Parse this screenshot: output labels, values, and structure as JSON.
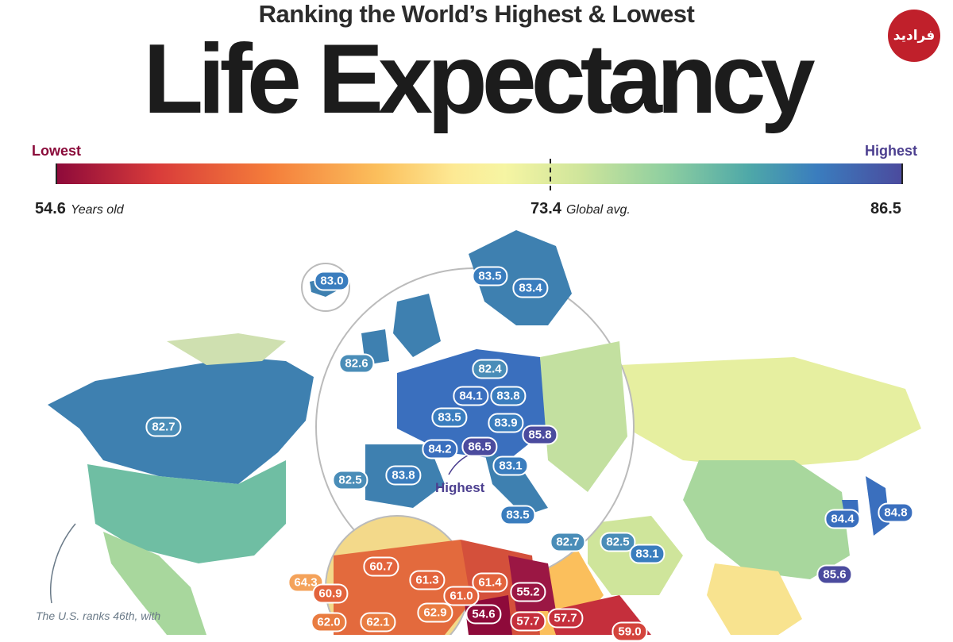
{
  "header": {
    "subtitle": "Ranking the World’s Highest & Lowest",
    "title": "Life Expectancy",
    "logo_text": "فرادید"
  },
  "legend": {
    "lowest_label": "Lowest",
    "highest_label": "Highest",
    "min_value": "54.6",
    "min_unit": "Years old",
    "avg_value": "73.4",
    "avg_unit": "Global avg.",
    "max_value": "86.5"
  },
  "annotations": {
    "highest_note": "Highest",
    "us_note": "The U.S. ranks 46th, with"
  },
  "colors": {
    "low": "#8e0a3a",
    "mid": "#f6f5a3",
    "high": "#4b4b9e"
  },
  "labels": [
    {
      "id": "iceland",
      "value": "83.0",
      "color": "#3a7dbe"
    },
    {
      "id": "norway",
      "value": "83.5",
      "color": "#3a7dbe"
    },
    {
      "id": "sweden",
      "value": "83.4",
      "color": "#3a7dbe"
    },
    {
      "id": "ireland",
      "value": "82.6",
      "color": "#4a8db8"
    },
    {
      "id": "germany",
      "value": "82.4",
      "color": "#4a8db8"
    },
    {
      "id": "luxembourg",
      "value": "84.1",
      "color": "#3a6fbe"
    },
    {
      "id": "switzerland",
      "value": "83.8",
      "color": "#3a7dbe"
    },
    {
      "id": "canada",
      "value": "82.7",
      "color": "#4a8db8"
    },
    {
      "id": "france",
      "value": "83.5",
      "color": "#3a7dbe"
    },
    {
      "id": "liechtenstein",
      "value": "83.9",
      "color": "#3a7dbe"
    },
    {
      "id": "hongkong-like",
      "value": "85.8",
      "color": "#4b4b9e"
    },
    {
      "id": "andorra",
      "value": "84.2",
      "color": "#3a6fbe"
    },
    {
      "id": "monaco",
      "value": "86.5",
      "color": "#4b4b9e"
    },
    {
      "id": "portugal",
      "value": "82.5",
      "color": "#4a8db8"
    },
    {
      "id": "spain",
      "value": "83.8",
      "color": "#3a7dbe"
    },
    {
      "id": "italy",
      "value": "83.1",
      "color": "#3a7dbe"
    },
    {
      "id": "malta",
      "value": "83.5",
      "color": "#3a7dbe"
    },
    {
      "id": "cyprus",
      "value": "82.7",
      "color": "#4a8db8"
    },
    {
      "id": "israel",
      "value": "82.5",
      "color": "#4a8db8"
    },
    {
      "id": "qatar",
      "value": "83.1",
      "color": "#3a7dbe"
    },
    {
      "id": "korea",
      "value": "84.4",
      "color": "#3a6fbe"
    },
    {
      "id": "japan",
      "value": "84.8",
      "color": "#3a6fbe"
    },
    {
      "id": "taiwan",
      "value": "85.6",
      "color": "#4b4b9e"
    },
    {
      "id": "w-africa-1",
      "value": "64.3",
      "color": "#f4a25a"
    },
    {
      "id": "mali",
      "value": "60.7",
      "color": "#e3643d"
    },
    {
      "id": "niger",
      "value": "61.3",
      "color": "#e3643d"
    },
    {
      "id": "chad",
      "value": "61.4",
      "color": "#e3643d"
    },
    {
      "id": "sudan-s",
      "value": "55.2",
      "color": "#9b1744"
    },
    {
      "id": "guinea",
      "value": "60.9",
      "color": "#e3643d"
    },
    {
      "id": "nigeria-n",
      "value": "61.0",
      "color": "#e3643d"
    },
    {
      "id": "senegal-s",
      "value": "62.0",
      "color": "#e97c41"
    },
    {
      "id": "burkina",
      "value": "62.1",
      "color": "#e97c41"
    },
    {
      "id": "nigeria",
      "value": "62.9",
      "color": "#e97c41"
    },
    {
      "id": "car",
      "value": "54.6",
      "color": "#8e0a3a"
    },
    {
      "id": "ethiopia-w",
      "value": "57.7",
      "color": "#c52f3c"
    },
    {
      "id": "ethiopia-e",
      "value": "57.7",
      "color": "#c52f3c"
    },
    {
      "id": "somalia",
      "value": "59.0",
      "color": "#d4443c"
    }
  ]
}
